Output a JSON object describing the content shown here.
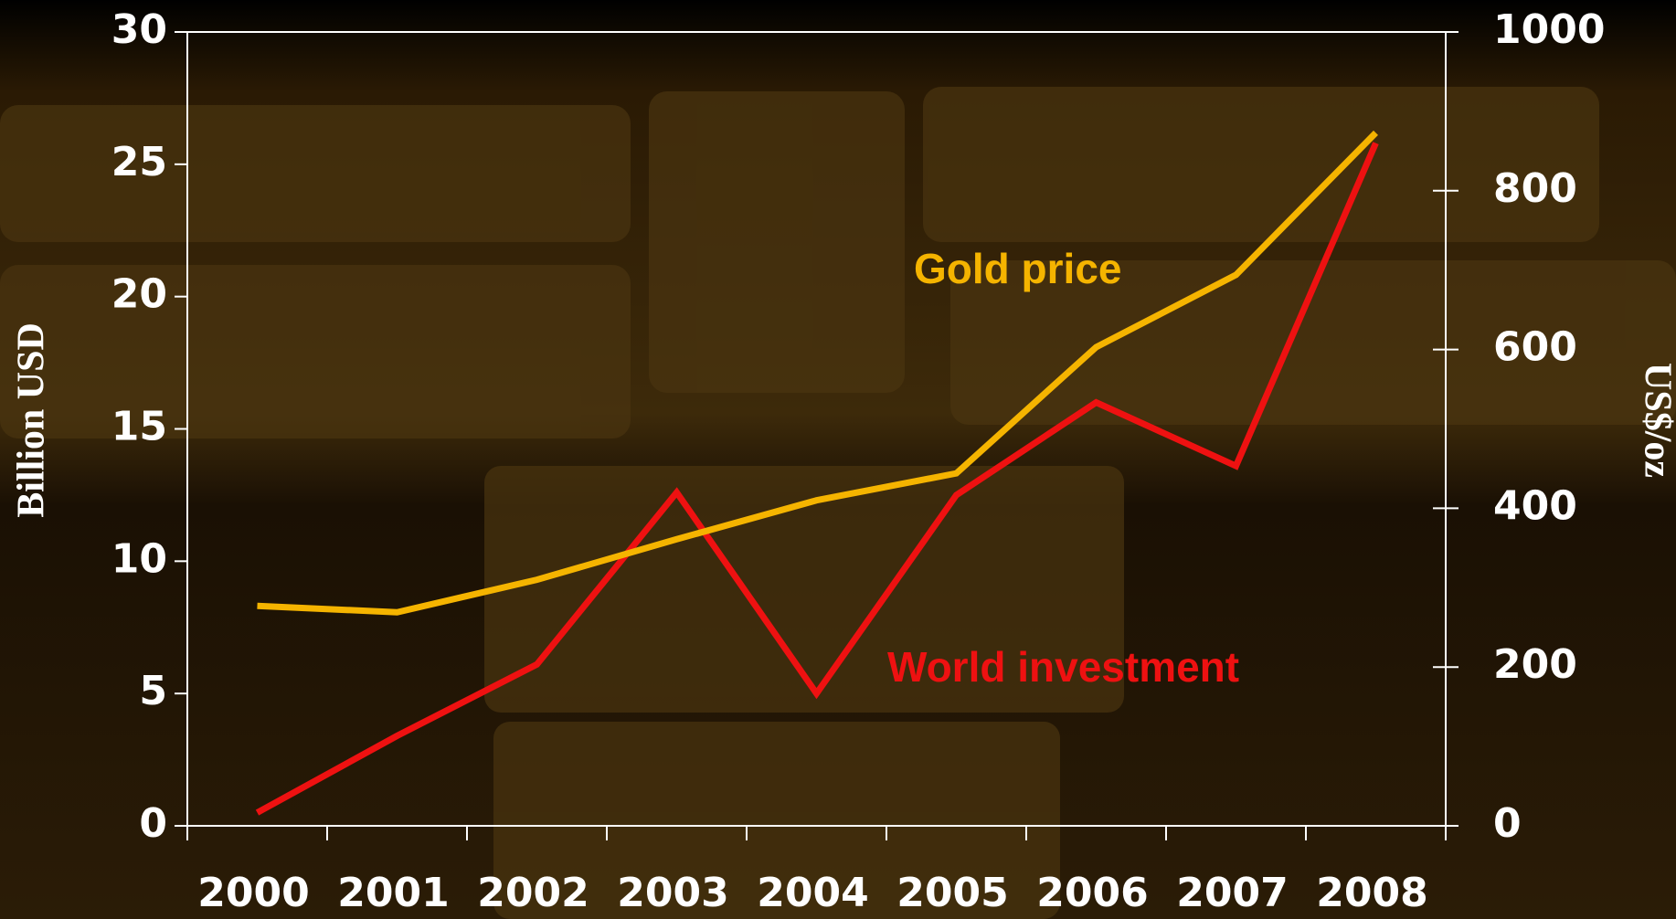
{
  "chart_data": {
    "type": "line",
    "categories": [
      "2000",
      "2001",
      "2002",
      "2003",
      "2004",
      "2005",
      "2006",
      "2007",
      "2008"
    ],
    "series": [
      {
        "name": "World investment",
        "color": "#ee1111",
        "values": [
          0.5,
          3.4,
          6.1,
          12.6,
          5.0,
          12.5,
          16.0,
          13.6,
          25.8
        ]
      },
      {
        "name": "Gold price",
        "color": "#f5b400",
        "axis": "y2",
        "values": [
          277,
          269,
          310,
          361,
          410,
          444,
          603,
          694,
          873
        ]
      }
    ],
    "ylabel": "Billion USD",
    "y2label": "US$/oz",
    "ylim": [
      0,
      30
    ],
    "yticks": [
      0,
      5,
      10,
      15,
      20,
      25,
      30
    ],
    "y2lim": [
      0,
      1000
    ],
    "y2ticks": [
      0,
      200,
      400,
      600,
      800,
      1000
    ]
  }
}
